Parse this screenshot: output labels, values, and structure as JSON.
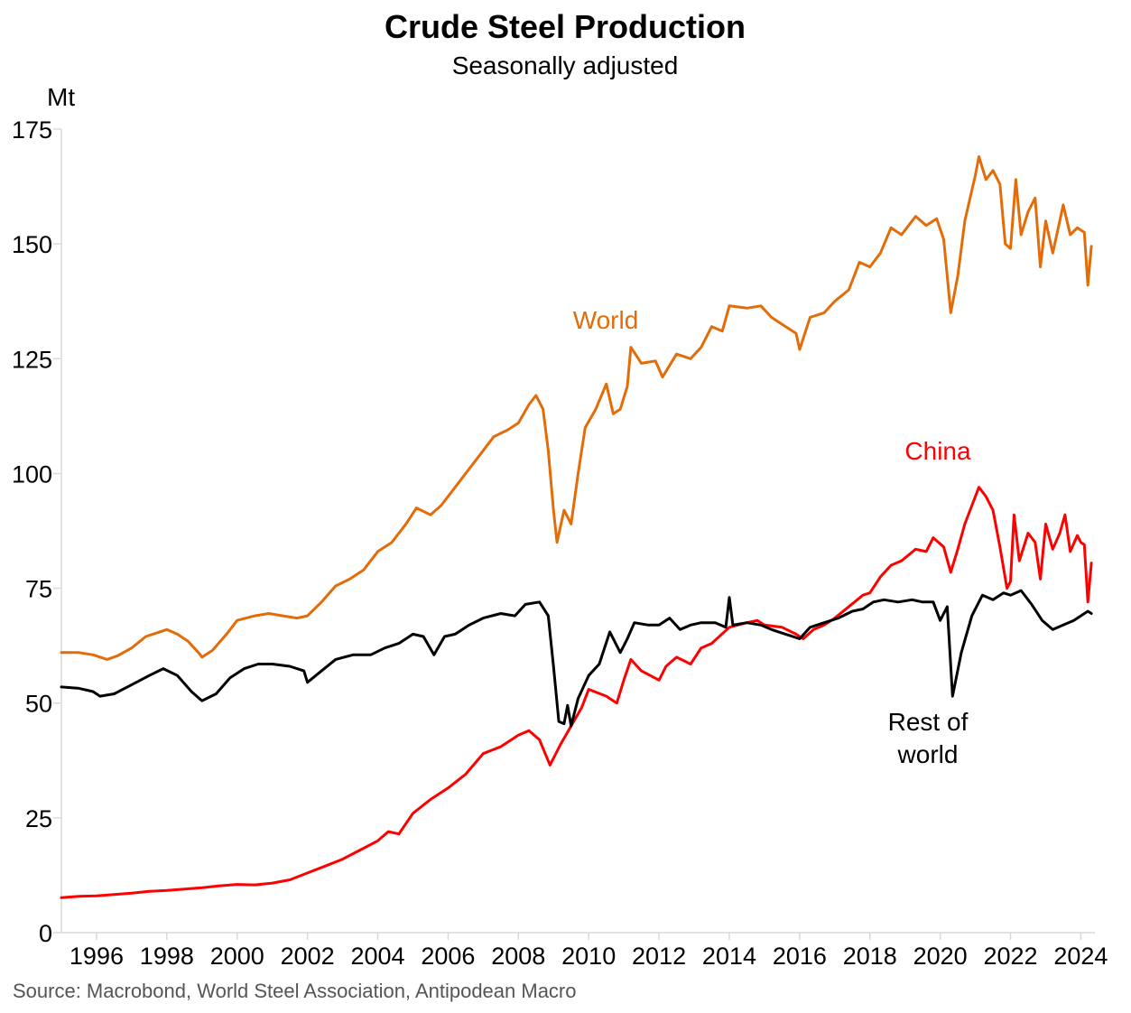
{
  "chart_data": {
    "type": "line",
    "title": "Crude Steel Production",
    "subtitle": "Seasonally adjusted",
    "ylabel": "Mt",
    "ylim": [
      0,
      175
    ],
    "yticks": [
      "0",
      "25",
      "50",
      "75",
      "100",
      "125",
      "150",
      "175"
    ],
    "xlim": [
      1995.0,
      2024.4
    ],
    "xticks": [
      "1996",
      "1998",
      "2000",
      "2002",
      "2004",
      "2006",
      "2008",
      "2010",
      "2012",
      "2014",
      "2016",
      "2018",
      "2020",
      "2022",
      "2024"
    ],
    "source": "Source: Macrobond, World Steel Association, Antipodean Macro",
    "series": [
      {
        "name": "World",
        "label": "World",
        "color": "#E36C09",
        "points": [
          [
            1995.0,
            61.0
          ],
          [
            1995.5,
            61.0
          ],
          [
            1995.9,
            60.5
          ],
          [
            1996.3,
            59.5
          ],
          [
            1996.6,
            60.3
          ],
          [
            1997.0,
            62.0
          ],
          [
            1997.4,
            64.5
          ],
          [
            1997.8,
            65.5
          ],
          [
            1998.0,
            66.0
          ],
          [
            1998.3,
            65.0
          ],
          [
            1998.6,
            63.5
          ],
          [
            1998.9,
            61.0
          ],
          [
            1999.0,
            60.0
          ],
          [
            1999.3,
            61.5
          ],
          [
            1999.7,
            65.0
          ],
          [
            2000.0,
            68.0
          ],
          [
            2000.5,
            69.0
          ],
          [
            2000.9,
            69.5
          ],
          [
            2001.3,
            69.0
          ],
          [
            2001.7,
            68.5
          ],
          [
            2002.0,
            69.0
          ],
          [
            2002.4,
            72.0
          ],
          [
            2002.8,
            75.5
          ],
          [
            2003.2,
            77.0
          ],
          [
            2003.6,
            79.0
          ],
          [
            2004.0,
            83.0
          ],
          [
            2004.4,
            85.0
          ],
          [
            2004.8,
            89.0
          ],
          [
            2005.1,
            92.5
          ],
          [
            2005.5,
            91.0
          ],
          [
            2005.8,
            93.0
          ],
          [
            2006.2,
            97.0
          ],
          [
            2006.6,
            101.0
          ],
          [
            2006.9,
            104.0
          ],
          [
            2007.3,
            108.0
          ],
          [
            2007.7,
            109.5
          ],
          [
            2008.0,
            111.0
          ],
          [
            2008.3,
            115.0
          ],
          [
            2008.5,
            117.0
          ],
          [
            2008.7,
            114.0
          ],
          [
            2008.85,
            105.0
          ],
          [
            2009.0,
            92.0
          ],
          [
            2009.1,
            85.0
          ],
          [
            2009.3,
            92.0
          ],
          [
            2009.5,
            89.0
          ],
          [
            2009.7,
            100.0
          ],
          [
            2009.9,
            110.0
          ],
          [
            2010.2,
            114.0
          ],
          [
            2010.5,
            119.5
          ],
          [
            2010.7,
            113.0
          ],
          [
            2010.9,
            114.0
          ],
          [
            2011.1,
            119.0
          ],
          [
            2011.2,
            127.5
          ],
          [
            2011.5,
            124.0
          ],
          [
            2011.9,
            124.5
          ],
          [
            2012.1,
            121.0
          ],
          [
            2012.5,
            126.0
          ],
          [
            2012.9,
            125.0
          ],
          [
            2013.2,
            127.5
          ],
          [
            2013.5,
            132.0
          ],
          [
            2013.8,
            131.0
          ],
          [
            2014.0,
            136.5
          ],
          [
            2014.5,
            136.0
          ],
          [
            2014.9,
            136.5
          ],
          [
            2015.2,
            134.0
          ],
          [
            2015.6,
            132.0
          ],
          [
            2015.9,
            130.5
          ],
          [
            2016.0,
            127.0
          ],
          [
            2016.3,
            134.0
          ],
          [
            2016.7,
            135.0
          ],
          [
            2017.0,
            137.5
          ],
          [
            2017.4,
            140.0
          ],
          [
            2017.7,
            146.0
          ],
          [
            2018.0,
            145.0
          ],
          [
            2018.3,
            148.0
          ],
          [
            2018.6,
            153.5
          ],
          [
            2018.9,
            152.0
          ],
          [
            2019.3,
            156.0
          ],
          [
            2019.6,
            154.0
          ],
          [
            2019.9,
            155.5
          ],
          [
            2020.1,
            151.0
          ],
          [
            2020.3,
            135.0
          ],
          [
            2020.5,
            143.0
          ],
          [
            2020.7,
            155.0
          ],
          [
            2021.0,
            165.0
          ],
          [
            2021.1,
            169.0
          ],
          [
            2021.3,
            164.0
          ],
          [
            2021.5,
            166.0
          ],
          [
            2021.7,
            163.0
          ],
          [
            2021.85,
            150.0
          ],
          [
            2022.0,
            149.0
          ],
          [
            2022.15,
            164.0
          ],
          [
            2022.3,
            152.0
          ],
          [
            2022.5,
            157.0
          ],
          [
            2022.7,
            160.0
          ],
          [
            2022.85,
            145.0
          ],
          [
            2023.0,
            155.0
          ],
          [
            2023.2,
            148.0
          ],
          [
            2023.4,
            155.0
          ],
          [
            2023.5,
            158.5
          ],
          [
            2023.7,
            152.0
          ],
          [
            2023.9,
            153.5
          ],
          [
            2024.0,
            153.0
          ],
          [
            2024.1,
            152.5
          ],
          [
            2024.2,
            141.0
          ],
          [
            2024.3,
            149.5
          ]
        ]
      },
      {
        "name": "China",
        "label": "China",
        "color": "#FF0000",
        "points": [
          [
            1995.0,
            7.6
          ],
          [
            1995.5,
            7.9
          ],
          [
            1996.0,
            8.0
          ],
          [
            1996.5,
            8.3
          ],
          [
            1997.0,
            8.6
          ],
          [
            1997.5,
            9.0
          ],
          [
            1998.0,
            9.2
          ],
          [
            1998.5,
            9.5
          ],
          [
            1999.0,
            9.8
          ],
          [
            1999.5,
            10.2
          ],
          [
            2000.0,
            10.5
          ],
          [
            2000.5,
            10.4
          ],
          [
            2001.0,
            10.8
          ],
          [
            2001.5,
            11.5
          ],
          [
            2002.0,
            13.0
          ],
          [
            2002.5,
            14.5
          ],
          [
            2003.0,
            16.0
          ],
          [
            2003.5,
            18.0
          ],
          [
            2004.0,
            20.0
          ],
          [
            2004.3,
            22.0
          ],
          [
            2004.6,
            21.5
          ],
          [
            2005.0,
            26.0
          ],
          [
            2005.5,
            29.0
          ],
          [
            2006.0,
            31.5
          ],
          [
            2006.5,
            34.5
          ],
          [
            2007.0,
            39.0
          ],
          [
            2007.5,
            40.5
          ],
          [
            2008.0,
            43.0
          ],
          [
            2008.3,
            44.0
          ],
          [
            2008.6,
            42.0
          ],
          [
            2008.9,
            36.5
          ],
          [
            2009.2,
            41.0
          ],
          [
            2009.5,
            45.0
          ],
          [
            2009.8,
            49.0
          ],
          [
            2010.0,
            53.0
          ],
          [
            2010.5,
            51.5
          ],
          [
            2010.8,
            50.0
          ],
          [
            2011.0,
            55.0
          ],
          [
            2011.2,
            59.5
          ],
          [
            2011.5,
            57.0
          ],
          [
            2012.0,
            55.0
          ],
          [
            2012.2,
            58.0
          ],
          [
            2012.5,
            60.0
          ],
          [
            2012.9,
            58.5
          ],
          [
            2013.2,
            62.0
          ],
          [
            2013.5,
            63.0
          ],
          [
            2014.0,
            66.5
          ],
          [
            2014.5,
            67.5
          ],
          [
            2014.8,
            68.0
          ],
          [
            2015.0,
            67.0
          ],
          [
            2015.5,
            66.5
          ],
          [
            2015.9,
            65.0
          ],
          [
            2016.1,
            64.0
          ],
          [
            2016.4,
            66.0
          ],
          [
            2016.7,
            67.0
          ],
          [
            2017.0,
            68.5
          ],
          [
            2017.4,
            71.0
          ],
          [
            2017.8,
            73.5
          ],
          [
            2018.0,
            74.0
          ],
          [
            2018.3,
            77.5
          ],
          [
            2018.6,
            80.0
          ],
          [
            2018.9,
            81.0
          ],
          [
            2019.3,
            83.5
          ],
          [
            2019.6,
            83.0
          ],
          [
            2019.8,
            86.0
          ],
          [
            2020.1,
            84.0
          ],
          [
            2020.3,
            78.5
          ],
          [
            2020.5,
            83.5
          ],
          [
            2020.7,
            89.0
          ],
          [
            2020.9,
            93.0
          ],
          [
            2021.1,
            97.0
          ],
          [
            2021.3,
            95.0
          ],
          [
            2021.5,
            92.0
          ],
          [
            2021.7,
            84.0
          ],
          [
            2021.9,
            75.0
          ],
          [
            2022.0,
            76.5
          ],
          [
            2022.1,
            91.0
          ],
          [
            2022.25,
            81.0
          ],
          [
            2022.5,
            87.0
          ],
          [
            2022.7,
            85.0
          ],
          [
            2022.85,
            77.0
          ],
          [
            2023.0,
            89.0
          ],
          [
            2023.2,
            83.5
          ],
          [
            2023.4,
            87.0
          ],
          [
            2023.55,
            91.0
          ],
          [
            2023.7,
            83.0
          ],
          [
            2023.9,
            86.5
          ],
          [
            2024.0,
            85.0
          ],
          [
            2024.1,
            84.5
          ],
          [
            2024.2,
            72.0
          ],
          [
            2024.3,
            80.5
          ]
        ]
      },
      {
        "name": "Rest of world",
        "label": "Rest of\nworld",
        "color": "#000000",
        "points": [
          [
            1995.0,
            53.5
          ],
          [
            1995.5,
            53.2
          ],
          [
            1995.9,
            52.5
          ],
          [
            1996.1,
            51.5
          ],
          [
            1996.5,
            52.0
          ],
          [
            1997.0,
            54.0
          ],
          [
            1997.5,
            56.0
          ],
          [
            1997.9,
            57.5
          ],
          [
            1998.3,
            56.0
          ],
          [
            1998.7,
            52.5
          ],
          [
            1999.0,
            50.5
          ],
          [
            1999.4,
            52.0
          ],
          [
            1999.8,
            55.5
          ],
          [
            2000.2,
            57.5
          ],
          [
            2000.6,
            58.5
          ],
          [
            2001.0,
            58.5
          ],
          [
            2001.5,
            58.0
          ],
          [
            2001.9,
            57.0
          ],
          [
            2002.0,
            54.5
          ],
          [
            2002.4,
            57.0
          ],
          [
            2002.8,
            59.5
          ],
          [
            2003.3,
            60.5
          ],
          [
            2003.8,
            60.5
          ],
          [
            2004.2,
            62.0
          ],
          [
            2004.6,
            63.0
          ],
          [
            2005.0,
            65.0
          ],
          [
            2005.3,
            64.5
          ],
          [
            2005.6,
            60.5
          ],
          [
            2005.9,
            64.5
          ],
          [
            2006.2,
            65.0
          ],
          [
            2006.6,
            67.0
          ],
          [
            2007.0,
            68.5
          ],
          [
            2007.5,
            69.5
          ],
          [
            2007.9,
            69.0
          ],
          [
            2008.2,
            71.5
          ],
          [
            2008.6,
            72.0
          ],
          [
            2008.85,
            69.0
          ],
          [
            2009.0,
            58.0
          ],
          [
            2009.15,
            46.0
          ],
          [
            2009.3,
            45.5
          ],
          [
            2009.4,
            49.5
          ],
          [
            2009.5,
            45.0
          ],
          [
            2009.7,
            51.0
          ],
          [
            2010.0,
            56.0
          ],
          [
            2010.3,
            58.5
          ],
          [
            2010.6,
            65.5
          ],
          [
            2010.9,
            61.0
          ],
          [
            2011.1,
            64.0
          ],
          [
            2011.3,
            67.5
          ],
          [
            2011.7,
            67.0
          ],
          [
            2012.0,
            67.0
          ],
          [
            2012.3,
            68.5
          ],
          [
            2012.6,
            66.0
          ],
          [
            2012.9,
            67.0
          ],
          [
            2013.2,
            67.5
          ],
          [
            2013.6,
            67.5
          ],
          [
            2013.9,
            66.5
          ],
          [
            2014.0,
            73.0
          ],
          [
            2014.1,
            67.0
          ],
          [
            2014.5,
            67.5
          ],
          [
            2014.9,
            67.0
          ],
          [
            2015.2,
            66.0
          ],
          [
            2015.6,
            65.0
          ],
          [
            2016.0,
            64.0
          ],
          [
            2016.3,
            66.5
          ],
          [
            2016.7,
            67.5
          ],
          [
            2017.1,
            68.5
          ],
          [
            2017.5,
            70.0
          ],
          [
            2017.8,
            70.5
          ],
          [
            2018.1,
            72.0
          ],
          [
            2018.4,
            72.5
          ],
          [
            2018.8,
            72.0
          ],
          [
            2019.2,
            72.5
          ],
          [
            2019.5,
            72.0
          ],
          [
            2019.8,
            72.0
          ],
          [
            2020.0,
            68.0
          ],
          [
            2020.2,
            71.0
          ],
          [
            2020.35,
            51.5
          ],
          [
            2020.6,
            61.0
          ],
          [
            2020.9,
            69.0
          ],
          [
            2021.2,
            73.5
          ],
          [
            2021.5,
            72.5
          ],
          [
            2021.8,
            74.0
          ],
          [
            2022.0,
            73.5
          ],
          [
            2022.3,
            74.5
          ],
          [
            2022.6,
            71.5
          ],
          [
            2022.9,
            68.0
          ],
          [
            2023.2,
            66.0
          ],
          [
            2023.5,
            67.0
          ],
          [
            2023.8,
            68.0
          ],
          [
            2024.0,
            69.0
          ],
          [
            2024.2,
            70.0
          ],
          [
            2024.3,
            69.5
          ]
        ]
      }
    ]
  }
}
